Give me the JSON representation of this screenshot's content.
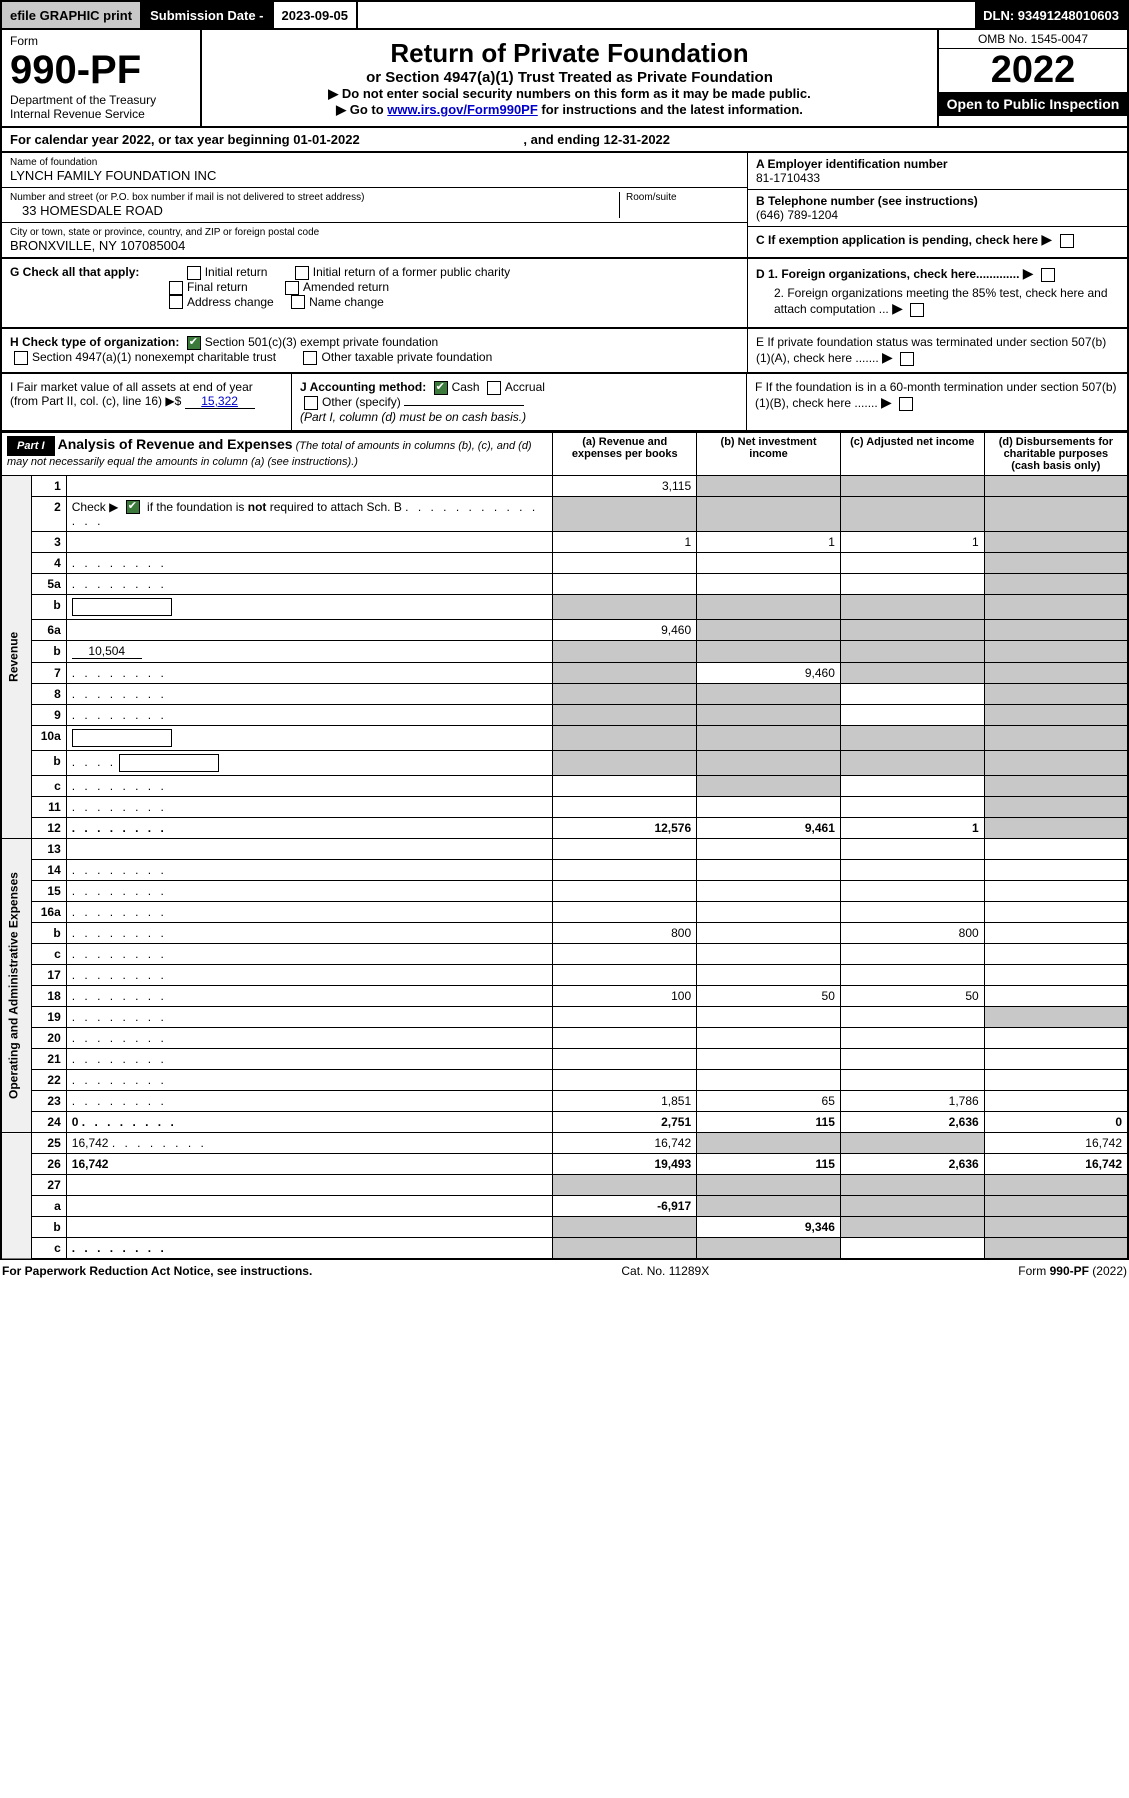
{
  "top": {
    "efile": "efile GRAPHIC print",
    "subdate_label": "Submission Date - ",
    "subdate": "2023-09-05",
    "dln": "DLN: 93491248010603"
  },
  "header": {
    "form": "Form",
    "form_no": "990-PF",
    "dept": "Department of the Treasury",
    "irs": "Internal Revenue Service",
    "title": "Return of Private Foundation",
    "sub1": "or Section 4947(a)(1) Trust Treated as Private Foundation",
    "sub2a": "▶ Do not enter social security numbers on this form as it may be made public.",
    "sub2b": "▶ Go to ",
    "sub2b_link": "www.irs.gov/Form990PF",
    "sub2b_rest": " for instructions and the latest information.",
    "omb": "OMB No. 1545-0047",
    "year": "2022",
    "inspect": "Open to Public Inspection"
  },
  "cal": {
    "text": "For calendar year 2022, or tax year beginning 01-01-2022",
    "end": ", and ending 12-31-2022"
  },
  "ident": {
    "name_label": "Name of foundation",
    "name": "LYNCH FAMILY FOUNDATION INC",
    "addr_label": "Number and street (or P.O. box number if mail is not delivered to street address)",
    "addr": "33 HOMESDALE ROAD",
    "room_label": "Room/suite",
    "city_label": "City or town, state or province, country, and ZIP or foreign postal code",
    "city": "BRONXVILLE, NY  107085004",
    "a_label": "A Employer identification number",
    "a_val": "81-1710433",
    "b_label": "B Telephone number (see instructions)",
    "b_val": "(646) 789-1204",
    "c_label": "C If exemption application is pending, check here",
    "d1": "D 1. Foreign organizations, check here.............",
    "d2": "2. Foreign organizations meeting the 85% test, check here and attach computation ...",
    "e": "E  If private foundation status was terminated under section 507(b)(1)(A), check here .......",
    "f": "F  If the foundation is in a 60-month termination under section 507(b)(1)(B), check here ......."
  },
  "g": {
    "label": "G Check all that apply:",
    "opts": [
      "Initial return",
      "Initial return of a former public charity",
      "Final return",
      "Amended return",
      "Address change",
      "Name change"
    ]
  },
  "h": {
    "label": "H Check type of organization:",
    "opt1": "Section 501(c)(3) exempt private foundation",
    "opt2": "Section 4947(a)(1) nonexempt charitable trust",
    "opt3": "Other taxable private foundation"
  },
  "i": {
    "label": "I Fair market value of all assets at end of year (from Part II, col. (c), line 16) ▶$ ",
    "val": "15,322"
  },
  "j": {
    "label": "J Accounting method:",
    "cash": "Cash",
    "accrual": "Accrual",
    "other": "Other (specify)",
    "note": "(Part I, column (d) must be on cash basis.)"
  },
  "part1": {
    "label": "Part I",
    "title": "Analysis of Revenue and Expenses",
    "title_note": " (The total of amounts in columns (b), (c), and (d) may not necessarily equal the amounts in column (a) (see instructions).)",
    "col_a": "(a) Revenue and expenses per books",
    "col_b": "(b) Net investment income",
    "col_c": "(c) Adjusted net income",
    "col_d": "(d) Disbursements for charitable purposes (cash basis only)",
    "side_rev": "Revenue",
    "side_exp": "Operating and Administrative Expenses"
  },
  "rows": [
    {
      "n": "1",
      "d": "",
      "a": "3,115",
      "b": "",
      "c": "",
      "b_sh": true,
      "c_sh": true,
      "d_sh": true
    },
    {
      "n": "2",
      "d": "",
      "a": "",
      "b": "",
      "c": "",
      "a_sh": true,
      "b_sh": true,
      "c_sh": true,
      "d_sh": true,
      "checked": true,
      "dots": true
    },
    {
      "n": "3",
      "d": "",
      "a": "1",
      "b": "1",
      "c": "1",
      "d_sh": true
    },
    {
      "n": "4",
      "d": "",
      "a": "",
      "b": "",
      "c": "",
      "d_sh": true,
      "dots": true
    },
    {
      "n": "5a",
      "d": "",
      "a": "",
      "b": "",
      "c": "",
      "d_sh": true,
      "dots": true
    },
    {
      "n": "b",
      "d": "",
      "a": "",
      "b": "",
      "c": "",
      "a_sh": true,
      "b_sh": true,
      "c_sh": true,
      "d_sh": true,
      "inline_box": true
    },
    {
      "n": "6a",
      "d": "",
      "a": "9,460",
      "b": "",
      "c": "",
      "b_sh": true,
      "c_sh": true,
      "d_sh": true
    },
    {
      "n": "b",
      "d": "",
      "a": "",
      "b": "",
      "c": "",
      "a_sh": true,
      "b_sh": true,
      "c_sh": true,
      "d_sh": true,
      "inline_val": "10,504"
    },
    {
      "n": "7",
      "d": "",
      "a": "",
      "b": "9,460",
      "c": "",
      "a_sh": true,
      "c_sh": true,
      "d_sh": true,
      "dots": true
    },
    {
      "n": "8",
      "d": "",
      "a": "",
      "b": "",
      "c": "",
      "a_sh": true,
      "b_sh": true,
      "d_sh": true,
      "dots": true
    },
    {
      "n": "9",
      "d": "",
      "a": "",
      "b": "",
      "c": "",
      "a_sh": true,
      "b_sh": true,
      "d_sh": true,
      "dots": true
    },
    {
      "n": "10a",
      "d": "",
      "a": "",
      "b": "",
      "c": "",
      "a_sh": true,
      "b_sh": true,
      "c_sh": true,
      "d_sh": true,
      "inline_box": true
    },
    {
      "n": "b",
      "d": "",
      "a": "",
      "b": "",
      "c": "",
      "a_sh": true,
      "b_sh": true,
      "c_sh": true,
      "d_sh": true,
      "inline_box": true,
      "dots": true
    },
    {
      "n": "c",
      "d": "",
      "a": "",
      "b": "",
      "c": "",
      "b_sh": true,
      "d_sh": true,
      "dots": true
    },
    {
      "n": "11",
      "d": "",
      "a": "",
      "b": "",
      "c": "",
      "d_sh": true,
      "dots": true
    },
    {
      "n": "12",
      "d": "",
      "a": "12,576",
      "b": "9,461",
      "c": "1",
      "d_sh": true,
      "bold": true,
      "dots": true
    },
    {
      "n": "13",
      "d": "",
      "a": "",
      "b": "",
      "c": ""
    },
    {
      "n": "14",
      "d": "",
      "a": "",
      "b": "",
      "c": "",
      "dots": true
    },
    {
      "n": "15",
      "d": "",
      "a": "",
      "b": "",
      "c": "",
      "dots": true
    },
    {
      "n": "16a",
      "d": "",
      "a": "",
      "b": "",
      "c": "",
      "dots": true
    },
    {
      "n": "b",
      "d": "",
      "a": "800",
      "b": "",
      "c": "800",
      "dots": true
    },
    {
      "n": "c",
      "d": "",
      "a": "",
      "b": "",
      "c": "",
      "dots": true
    },
    {
      "n": "17",
      "d": "",
      "a": "",
      "b": "",
      "c": "",
      "dots": true
    },
    {
      "n": "18",
      "d": "",
      "a": "100",
      "b": "50",
      "c": "50",
      "dots": true
    },
    {
      "n": "19",
      "d": "",
      "a": "",
      "b": "",
      "c": "",
      "d_sh": true,
      "dots": true
    },
    {
      "n": "20",
      "d": "",
      "a": "",
      "b": "",
      "c": "",
      "dots": true
    },
    {
      "n": "21",
      "d": "",
      "a": "",
      "b": "",
      "c": "",
      "dots": true
    },
    {
      "n": "22",
      "d": "",
      "a": "",
      "b": "",
      "c": "",
      "dots": true
    },
    {
      "n": "23",
      "d": "",
      "a": "1,851",
      "b": "65",
      "c": "1,786",
      "dots": true
    },
    {
      "n": "24",
      "d": "0",
      "a": "2,751",
      "b": "115",
      "c": "2,636",
      "bold": true,
      "dots": true
    },
    {
      "n": "25",
      "d": "16,742",
      "a": "16,742",
      "b": "",
      "c": "",
      "b_sh": true,
      "c_sh": true,
      "dots": true
    },
    {
      "n": "26",
      "d": "16,742",
      "a": "19,493",
      "b": "115",
      "c": "2,636",
      "bold": true
    },
    {
      "n": "27",
      "d": "",
      "a": "",
      "b": "",
      "c": "",
      "a_sh": true,
      "b_sh": true,
      "c_sh": true,
      "d_sh": true
    },
    {
      "n": "a",
      "d": "",
      "a": "-6,917",
      "b": "",
      "c": "",
      "b_sh": true,
      "c_sh": true,
      "d_sh": true,
      "bold": true
    },
    {
      "n": "b",
      "d": "",
      "a": "",
      "b": "9,346",
      "c": "",
      "a_sh": true,
      "c_sh": true,
      "d_sh": true,
      "bold": true
    },
    {
      "n": "c",
      "d": "",
      "a": "",
      "b": "",
      "c": "",
      "a_sh": true,
      "b_sh": true,
      "d_sh": true,
      "bold": true,
      "dots": true
    }
  ],
  "footer": {
    "left": "For Paperwork Reduction Act Notice, see instructions.",
    "mid": "Cat. No. 11289X",
    "right": "Form 990-PF (2022)"
  }
}
